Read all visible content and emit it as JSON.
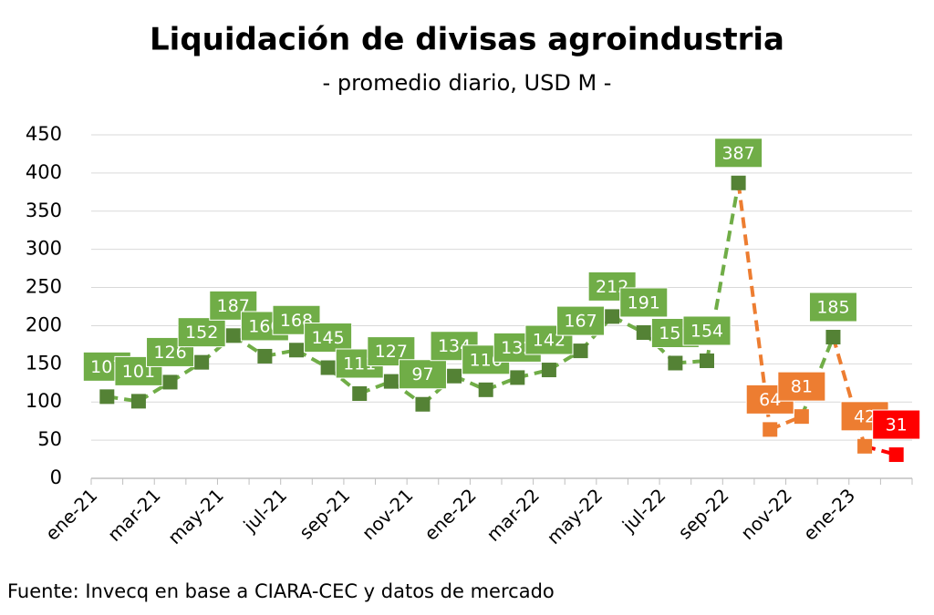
{
  "chart_data": {
    "type": "line",
    "title": "Liquidación de divisas agroindustria",
    "subtitle": "- promedio diario, USD M -",
    "source": "Fuente: Invecq en base a CIARA-CEC y datos de mercado",
    "categories": [
      "ene-21",
      null,
      "mar-21",
      null,
      "may-21",
      null,
      "jul-21",
      null,
      "sep-21",
      null,
      "nov-21",
      null,
      "ene-22",
      null,
      "mar-22",
      null,
      "may-22",
      null,
      "jul-22",
      null,
      "sep-22",
      null,
      "nov-22",
      null,
      "ene-23",
      null
    ],
    "series": [
      {
        "values": [
          107,
          101,
          126,
          152,
          187,
          160,
          168,
          145,
          111,
          127,
          97,
          134,
          116,
          132,
          142,
          167,
          212,
          191,
          151,
          154,
          387,
          64,
          81,
          185,
          42,
          31
        ],
        "colors": [
          "#70ad47",
          "#70ad47",
          "#70ad47",
          "#70ad47",
          "#70ad47",
          "#70ad47",
          "#70ad47",
          "#70ad47",
          "#70ad47",
          "#70ad47",
          "#70ad47",
          "#70ad47",
          "#70ad47",
          "#70ad47",
          "#70ad47",
          "#70ad47",
          "#70ad47",
          "#70ad47",
          "#70ad47",
          "#70ad47",
          "#70ad47",
          "#ed7d31",
          "#ed7d31",
          "#70ad47",
          "#ed7d31",
          "#ff0000"
        ],
        "marker_colors": [
          "#548235",
          "#548235",
          "#548235",
          "#548235",
          "#548235",
          "#548235",
          "#548235",
          "#548235",
          "#548235",
          "#548235",
          "#548235",
          "#548235",
          "#548235",
          "#548235",
          "#548235",
          "#548235",
          "#548235",
          "#548235",
          "#548235",
          "#548235",
          "#548235",
          "#ed7d31",
          "#ed7d31",
          "#548235",
          "#ed7d31",
          "#ff0000"
        ]
      }
    ],
    "ylim": [
      0,
      450
    ],
    "yticks": [
      0,
      50,
      100,
      150,
      200,
      250,
      300,
      350,
      400,
      450
    ],
    "grid": true
  }
}
